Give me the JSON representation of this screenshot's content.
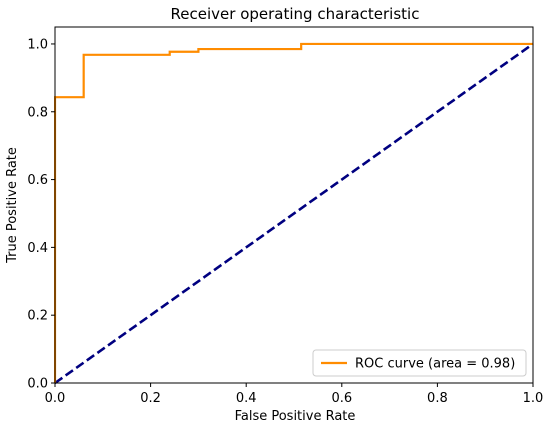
{
  "chart_data": {
    "type": "line",
    "title": "Receiver operating characteristic",
    "xlabel": "False Positive Rate",
    "ylabel": "True Positive Rate",
    "xlim": [
      0.0,
      1.0
    ],
    "ylim": [
      0.0,
      1.05
    ],
    "xticks": [
      0.0,
      0.2,
      0.4,
      0.6,
      0.8,
      1.0
    ],
    "yticks": [
      0.0,
      0.2,
      0.4,
      0.6,
      0.8,
      1.0
    ],
    "xtick_labels": [
      "0.0",
      "0.2",
      "0.4",
      "0.6",
      "0.8",
      "1.0"
    ],
    "ytick_labels": [
      "0.0",
      "0.2",
      "0.4",
      "0.6",
      "0.8",
      "1.0"
    ],
    "grid": false,
    "legend_position": "lower-right",
    "series": [
      {
        "name": "ROC curve (area = 0.98)",
        "color": "#ff8c00",
        "style": "solid",
        "x": [
          0.0,
          0.0,
          0.0,
          0.06,
          0.06,
          0.24,
          0.24,
          0.3,
          0.3,
          0.515,
          0.515,
          1.0
        ],
        "y": [
          0.0,
          0.0,
          0.843,
          0.843,
          0.968,
          0.968,
          0.977,
          0.977,
          0.985,
          0.985,
          1.0,
          1.0
        ]
      },
      {
        "name": "",
        "color": "#000080",
        "style": "dashed",
        "x": [
          0.0,
          1.0
        ],
        "y": [
          0.0,
          1.0
        ]
      }
    ]
  }
}
